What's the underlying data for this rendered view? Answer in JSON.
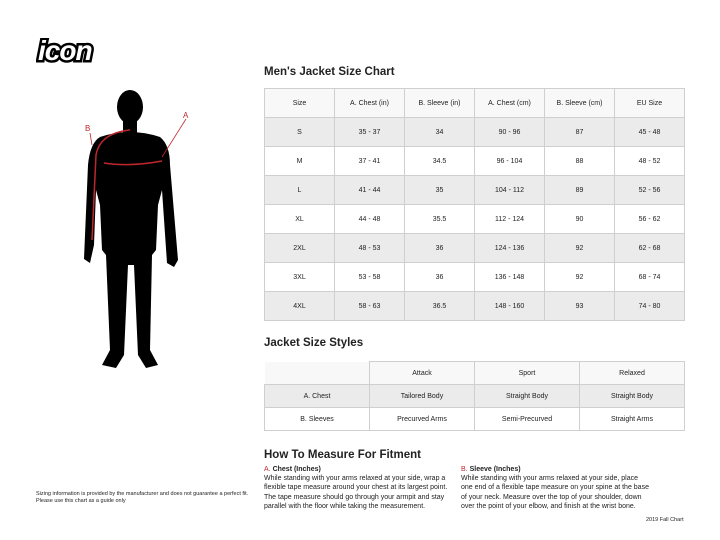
{
  "logo": {
    "text": "icon"
  },
  "figure": {
    "label_a": "A",
    "label_b": "B"
  },
  "size_chart": {
    "title": "Men's Jacket Size Chart",
    "headers": [
      "Size",
      "A. Chest (in)",
      "B. Sleeve (in)",
      "A. Chest (cm)",
      "B. Sleeve (cm)",
      "EU Size"
    ],
    "rows": [
      [
        "S",
        "35 - 37",
        "34",
        "90 - 96",
        "87",
        "45 - 48"
      ],
      [
        "M",
        "37 - 41",
        "34.5",
        "96 - 104",
        "88",
        "48 - 52"
      ],
      [
        "L",
        "41 - 44",
        "35",
        "104 - 112",
        "89",
        "52 - 56"
      ],
      [
        "XL",
        "44 - 48",
        "35.5",
        "112 - 124",
        "90",
        "56 - 62"
      ],
      [
        "2XL",
        "48 - 53",
        "36",
        "124 - 136",
        "92",
        "62 - 68"
      ],
      [
        "3XL",
        "53 - 58",
        "36",
        "136 - 148",
        "92",
        "68 - 74"
      ],
      [
        "4XL",
        "58 - 63",
        "36.5",
        "148 - 160",
        "93",
        "74 - 80"
      ]
    ]
  },
  "styles": {
    "title": "Jacket Size Styles",
    "headers": [
      "Attack",
      "Sport",
      "Relaxed"
    ],
    "rows": [
      [
        "A. Chest",
        "Tailored Body",
        "Straight Body",
        "Straight Body"
      ],
      [
        "B. Sleeves",
        "Precurved Arms",
        "Semi-Precurved",
        "Straight Arms"
      ]
    ]
  },
  "measure": {
    "title": "How To Measure For Fitment",
    "chest": {
      "letter": "A.",
      "label": "Chest (Inches)",
      "text": "While standing with your arms relaxed at your side, wrap a flexible tape measure around your chest at its largest point. The tape measure should go through your armpit and stay parallel with the floor while taking the measurement."
    },
    "sleeve": {
      "letter": "B.",
      "label": "Sleeve (Inches)",
      "text": "While standing with your arms relaxed at your side, place one end of a flexible tape measure on your spine at the base of your neck. Measure over the top of your shoulder, down over the point of your elbow, and finish at the wrist bone."
    }
  },
  "disclaimer": {
    "line1": "Sizing information is provided by the manufacturer and does not guarantee a perfect fit.",
    "line2": "Please use this chart as a guide only"
  },
  "footer": {
    "edition": "2019 Fall Chart"
  },
  "colors": {
    "accent": "#c0272d",
    "row_shade": "#ebebeb"
  }
}
